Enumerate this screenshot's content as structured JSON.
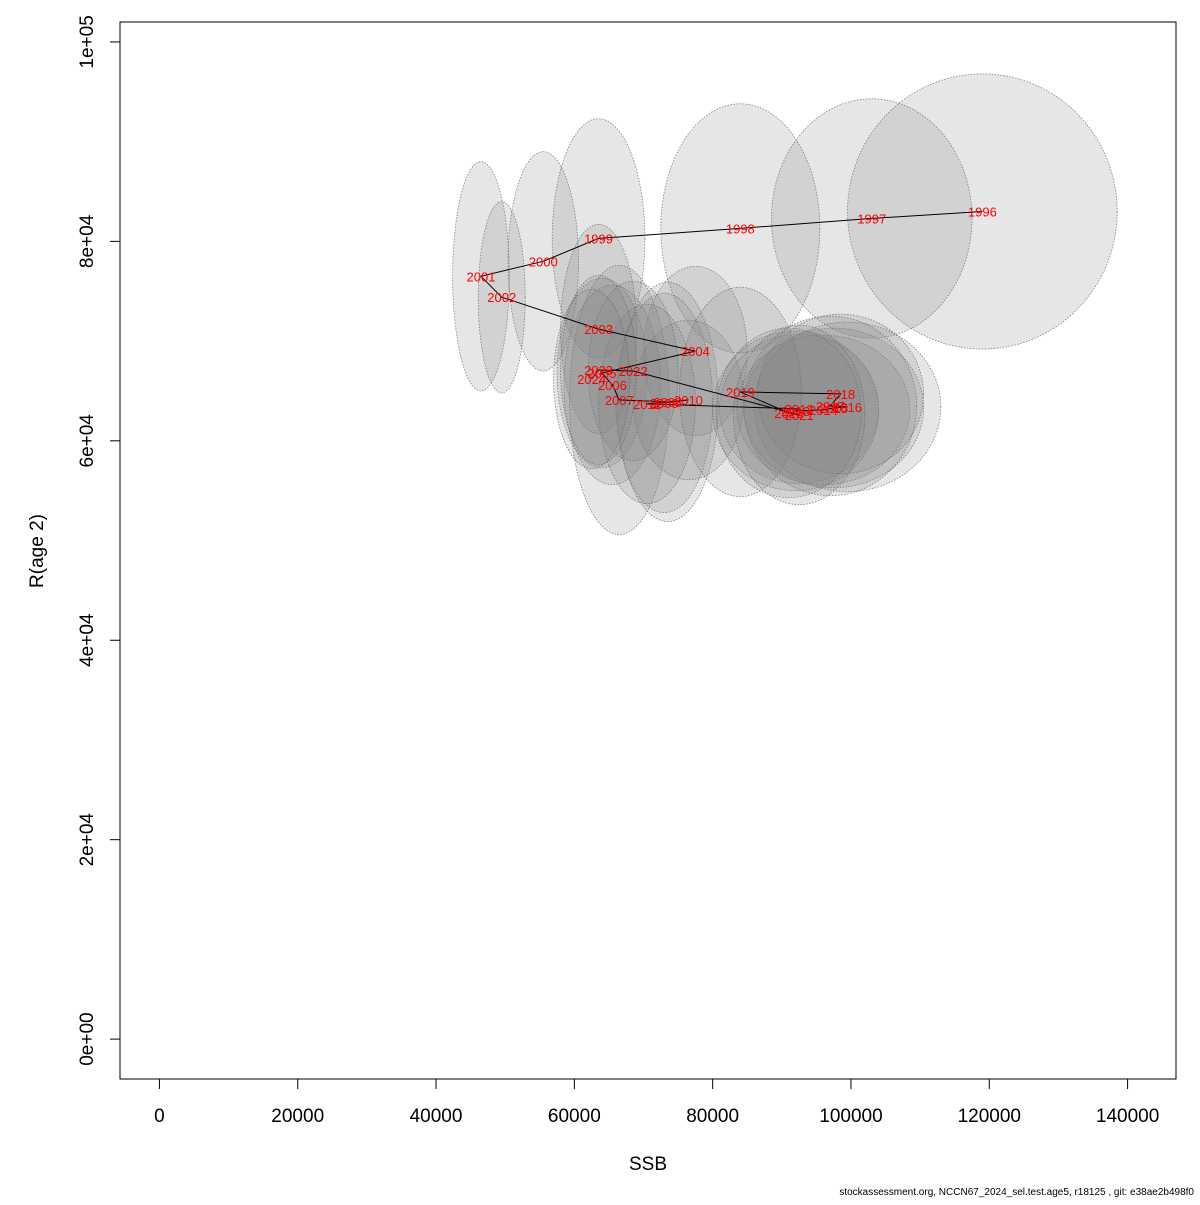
{
  "chart_data": {
    "type": "scatter",
    "xlabel": "SSB",
    "ylabel": "R(age 2)",
    "xlim": [
      -5700,
      147000
    ],
    "ylim": [
      -4000,
      102000
    ],
    "x_ticks": [
      0,
      20000,
      40000,
      60000,
      80000,
      100000,
      120000,
      140000
    ],
    "x_tick_labels": [
      "0",
      "20000",
      "40000",
      "60000",
      "80000",
      "100000",
      "120000",
      "140000"
    ],
    "y_ticks": [
      0,
      20000,
      40000,
      60000,
      80000,
      100000
    ],
    "y_tick_labels": [
      "0e+00",
      "2e+04",
      "4e+04",
      "6e+04",
      "8e+04",
      "1e+05"
    ],
    "grid": false,
    "colors": {
      "label": "#ff0000",
      "line": "#000000",
      "ellipse_fill": "#808080",
      "ellipse_stroke": "#666666"
    },
    "points": [
      {
        "year": "1996",
        "ssb": 119000,
        "r": 83000,
        "sx": 19500,
        "sy": 13800
      },
      {
        "year": "1997",
        "ssb": 103000,
        "r": 82300,
        "sx": 14500,
        "sy": 12000
      },
      {
        "year": "1998",
        "ssb": 84000,
        "r": 81300,
        "sx": 11500,
        "sy": 12500
      },
      {
        "year": "1999",
        "ssb": 63500,
        "r": 80300,
        "sx": 6700,
        "sy": 12000
      },
      {
        "year": "2000",
        "ssb": 55500,
        "r": 78000,
        "sx": 5100,
        "sy": 11000
      },
      {
        "year": "2001",
        "ssb": 46500,
        "r": 76500,
        "sx": 4100,
        "sy": 11500
      },
      {
        "year": "2002",
        "ssb": 49500,
        "r": 74400,
        "sx": 3400,
        "sy": 9600
      },
      {
        "year": "2003",
        "ssb": 63500,
        "r": 71200,
        "sx": 5500,
        "sy": 10500
      },
      {
        "year": "2004",
        "ssb": 77500,
        "r": 69000,
        "sx": 7500,
        "sy": 8500
      },
      {
        "year": "2005",
        "ssb": 64000,
        "r": 66800,
        "sx": 6500,
        "sy": 9500
      },
      {
        "year": "2006",
        "ssb": 65500,
        "r": 65600,
        "sx": 7000,
        "sy": 10000
      },
      {
        "year": "2007",
        "ssb": 66500,
        "r": 64100,
        "sx": 7200,
        "sy": 13500
      },
      {
        "year": "2008",
        "ssb": 73500,
        "r": 63900,
        "sx": 7300,
        "sy": 12000
      },
      {
        "year": "2009",
        "ssb": 73000,
        "r": 63800,
        "sx": 7000,
        "sy": 11000
      },
      {
        "year": "2010",
        "ssb": 76500,
        "r": 64100,
        "sx": 8000,
        "sy": 8000
      },
      {
        "year": "2011",
        "ssb": 70500,
        "r": 63700,
        "sx": 7000,
        "sy": 10000
      },
      {
        "year": "2012",
        "ssb": 92500,
        "r": 63200,
        "sx": 11500,
        "sy": 7500
      },
      {
        "year": "2013",
        "ssb": 92000,
        "r": 63000,
        "sx": 12000,
        "sy": 8000
      },
      {
        "year": "2014",
        "ssb": 96000,
        "r": 63100,
        "sx": 12500,
        "sy": 7500
      },
      {
        "year": "2015",
        "ssb": 97500,
        "r": 63300,
        "sx": 13000,
        "sy": 8000
      },
      {
        "year": "2016",
        "ssb": 99500,
        "r": 63400,
        "sx": 13500,
        "sy": 8500
      },
      {
        "year": "2017",
        "ssb": 97000,
        "r": 63500,
        "sx": 12500,
        "sy": 9000
      },
      {
        "year": "2018",
        "ssb": 98500,
        "r": 64700,
        "sx": 12000,
        "sy": 8000
      },
      {
        "year": "2019",
        "ssb": 84000,
        "r": 64900,
        "sx": 8800,
        "sy": 10500
      },
      {
        "year": "2020",
        "ssb": 91000,
        "r": 62800,
        "sx": 10500,
        "sy": 8500
      },
      {
        "year": "2021",
        "ssb": 92500,
        "r": 62600,
        "sx": 9500,
        "sy": 9000
      },
      {
        "year": "2022",
        "ssb": 68500,
        "r": 67000,
        "sx": 6500,
        "sy": 9000
      },
      {
        "year": "2023",
        "ssb": 63500,
        "r": 67100,
        "sx": 5500,
        "sy": 9500
      },
      {
        "year": "2024",
        "ssb": 62500,
        "r": 66200,
        "sx": 5500,
        "sy": 9000
      }
    ],
    "path_years": [
      "1996",
      "1997",
      "1998",
      "1999",
      "2000",
      "2001",
      "2002",
      "2003",
      "2004",
      "2005",
      "2006",
      "2007",
      "2008",
      "2009",
      "2010",
      "2011",
      "2012",
      "2013",
      "2014",
      "2015",
      "2016",
      "2017",
      "2018",
      "2019",
      "2020",
      "2021",
      "2022",
      "2023",
      "2024"
    ]
  },
  "footer": "stockassessment.org, NCCN67_2024_sel.test.age5, r18125 , git: e38ae2b498f0"
}
